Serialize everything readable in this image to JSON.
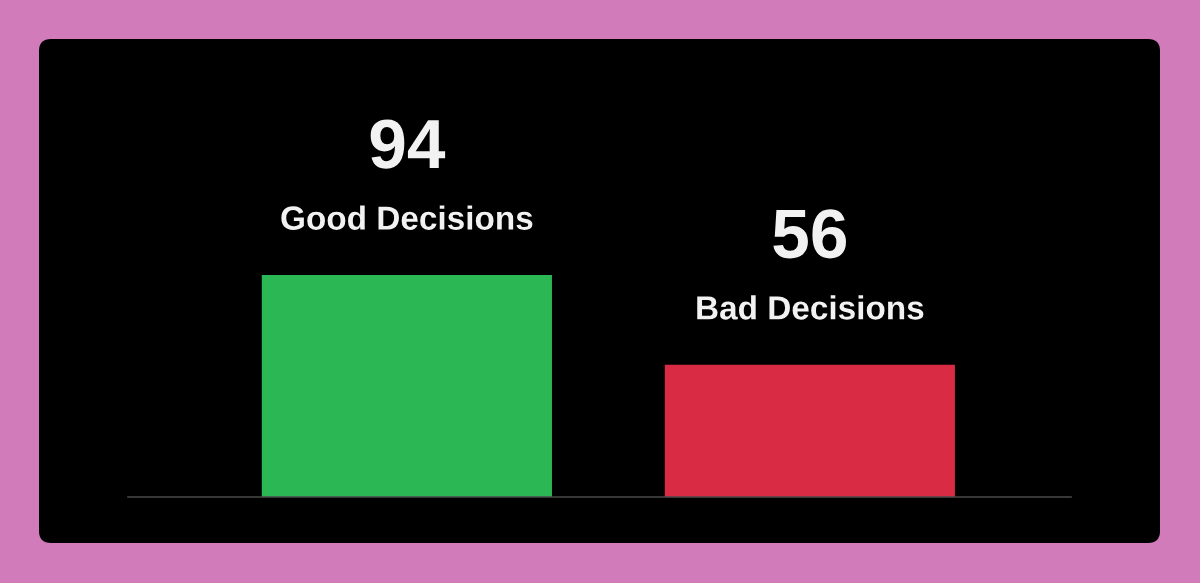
{
  "chart_data": {
    "type": "bar",
    "categories": [
      "Good Decisions",
      "Bad Decisions"
    ],
    "values": [
      94,
      56
    ],
    "colors": [
      "#2bb854",
      "#d92b44"
    ],
    "data_labels": true,
    "tick_labels": false
  }
}
